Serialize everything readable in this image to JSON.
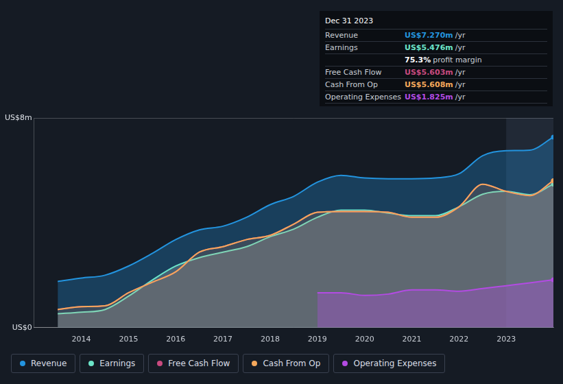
{
  "chart_data": {
    "type": "line",
    "x": [
      2013.5,
      2014.0,
      2014.5,
      2015.0,
      2015.5,
      2016.0,
      2016.5,
      2017.0,
      2017.5,
      2018.0,
      2018.5,
      2019.0,
      2019.5,
      2020.0,
      2020.5,
      2021.0,
      2021.5,
      2022.0,
      2022.5,
      2023.0,
      2023.5,
      2024.0
    ],
    "series": [
      {
        "name": "Revenue",
        "color": "#2394df",
        "values": [
          1.76,
          1.89,
          2.0,
          2.35,
          2.83,
          3.36,
          3.73,
          3.87,
          4.21,
          4.69,
          5.01,
          5.55,
          5.81,
          5.71,
          5.68,
          5.68,
          5.71,
          5.87,
          6.56,
          6.75,
          6.77,
          7.27
        ]
      },
      {
        "name": "Earnings",
        "color": "#6ce5c9",
        "values": [
          0.53,
          0.59,
          0.69,
          1.2,
          1.81,
          2.35,
          2.67,
          2.88,
          3.09,
          3.47,
          3.76,
          4.21,
          4.48,
          4.48,
          4.37,
          4.27,
          4.27,
          4.61,
          5.09,
          5.2,
          5.07,
          5.476
        ]
      },
      {
        "name": "Free Cash Flow",
        "color": "#c94a7f",
        "values": [
          0.69,
          0.8,
          0.83,
          1.33,
          1.73,
          2.13,
          2.88,
          3.09,
          3.36,
          3.52,
          3.95,
          4.4,
          4.43,
          4.43,
          4.4,
          4.21,
          4.21,
          4.61,
          5.47,
          5.2,
          5.04,
          5.603
        ]
      },
      {
        "name": "Cash From Op",
        "color": "#f5a85b",
        "values": [
          0.69,
          0.8,
          0.83,
          1.33,
          1.73,
          2.13,
          2.88,
          3.09,
          3.36,
          3.52,
          3.95,
          4.4,
          4.43,
          4.43,
          4.4,
          4.21,
          4.21,
          4.61,
          5.47,
          5.2,
          5.04,
          5.608
        ]
      },
      {
        "name": "Operating Expenses",
        "color": "#b34be3",
        "values": [
          null,
          null,
          null,
          null,
          null,
          null,
          null,
          null,
          null,
          null,
          null,
          1.33,
          1.33,
          1.23,
          1.28,
          1.44,
          1.44,
          1.39,
          1.49,
          1.6,
          1.71,
          1.825
        ]
      }
    ],
    "xlim": [
      2013,
      2024
    ],
    "xticks": [
      2014,
      2015,
      2016,
      2017,
      2018,
      2019,
      2020,
      2021,
      2022,
      2023
    ],
    "ylim": [
      0,
      8
    ],
    "yticks": [
      {
        "value": 0,
        "label": "US$0"
      },
      {
        "value": 8,
        "label": "US$8m"
      }
    ],
    "shaded_range": [
      2023,
      2024
    ],
    "grid": true,
    "legend": "bottom",
    "info_box": {
      "title": "Dec 31 2023",
      "rows": [
        {
          "label": "Revenue",
          "value": "US$7.270m",
          "unit": "/yr",
          "color": "#2394df"
        },
        {
          "label": "Earnings",
          "value": "US$5.476m",
          "unit": "/yr",
          "color": "#6ce5c9"
        },
        {
          "label": "",
          "value": "75.3%",
          "unit": "profit margin",
          "color": "#ffffff"
        },
        {
          "label": "Free Cash Flow",
          "value": "US$5.603m",
          "unit": "/yr",
          "color": "#c94a7f"
        },
        {
          "label": "Cash From Op",
          "value": "US$5.608m",
          "unit": "/yr",
          "color": "#f5a85b"
        },
        {
          "label": "Operating Expenses",
          "value": "US$1.825m",
          "unit": "/yr",
          "color": "#b34be3"
        }
      ]
    }
  }
}
